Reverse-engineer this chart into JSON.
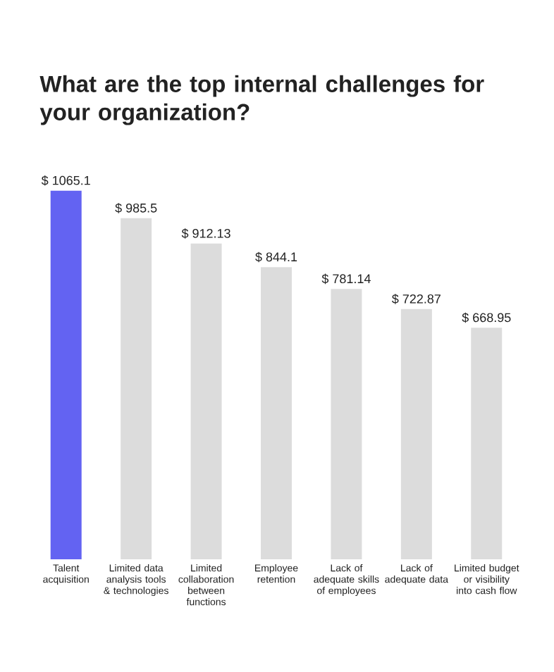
{
  "chart_data": {
    "type": "bar",
    "title": "What are the top internal challenges for your organization?",
    "categories": [
      "Talent acquisition",
      "Limited data analysis tools & technologies",
      "Limited collaboration between functions",
      "Employee retention",
      "Lack of adequate skills of employees",
      "Lack of adequate data",
      "Limited budget or visibility into cash flow"
    ],
    "values": [
      1065.1,
      985.5,
      912.13,
      844.1,
      781.14,
      722.87,
      668.95
    ],
    "value_labels": [
      "$ 1065.1",
      "$ 985.5",
      "$ 912.13",
      "$ 844.1",
      "$ 781.14",
      "$ 722.87",
      "$ 668.95"
    ],
    "colors": [
      "#6363f2",
      "#dcdcdc",
      "#dcdcdc",
      "#dcdcdc",
      "#dcdcdc",
      "#dcdcdc",
      "#dcdcdc"
    ]
  }
}
